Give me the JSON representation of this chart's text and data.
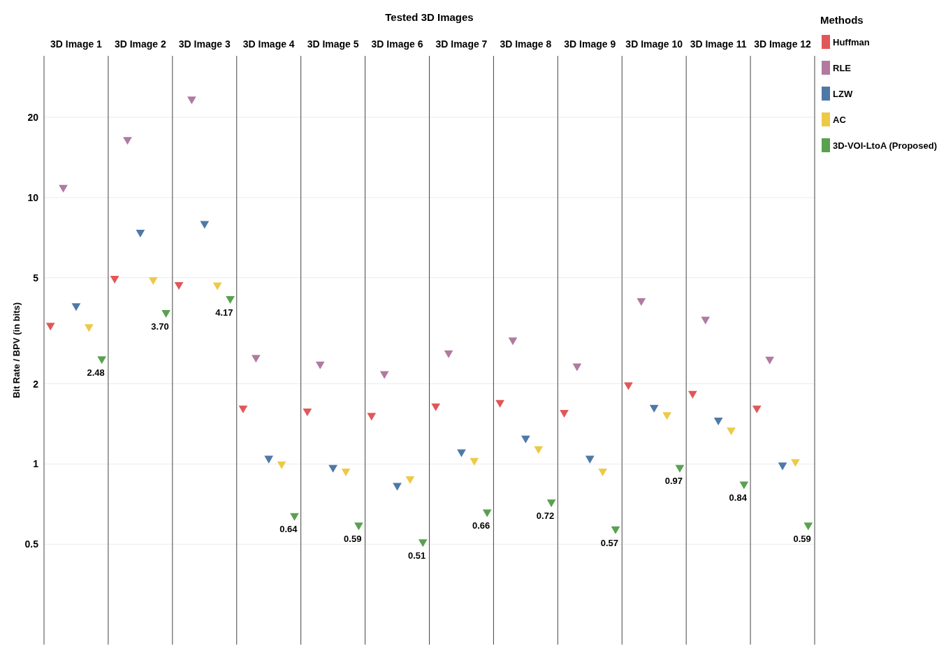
{
  "chart_data": {
    "type": "scatter",
    "xlabel": "Tested 3D Images",
    "ylabel": "Bit Rate / BPV (in bits)",
    "legend_title": "Methods",
    "legend": "right",
    "marker": "triangle",
    "log": "y",
    "grid": "y",
    "categories": [
      "3D Image 1",
      "3D Image 2",
      "3D Image 3",
      "3D Image 4",
      "3D Image 5",
      "3D Image 6",
      "3D Image 7",
      "3D Image 8",
      "3D Image 9",
      "3D Image 10",
      "3D Image 11",
      "3D Image 12"
    ],
    "ylim": [
      0.21,
      34
    ],
    "yticks": [
      0.5,
      1,
      2,
      5,
      10,
      20
    ],
    "series": [
      {
        "name": "Huffman",
        "color": "#e15759",
        "values": [
          3.31,
          4.97,
          4.71,
          1.62,
          1.58,
          1.52,
          1.65,
          1.7,
          1.56,
          1.98,
          1.84,
          1.62
        ]
      },
      {
        "name": "RLE",
        "color": "#b07aa1",
        "values": [
          10.9,
          16.5,
          23.4,
          2.51,
          2.37,
          2.18,
          2.61,
          2.92,
          2.33,
          4.1,
          3.49,
          2.47
        ]
      },
      {
        "name": "LZW",
        "color": "#4e79a7",
        "values": [
          3.92,
          7.4,
          7.98,
          1.05,
          0.97,
          0.83,
          1.11,
          1.25,
          1.05,
          1.63,
          1.46,
          0.99
        ]
      },
      {
        "name": "AC",
        "color": "#edc948",
        "values": [
          3.27,
          4.91,
          4.69,
          1.0,
          0.94,
          0.88,
          1.03,
          1.14,
          0.94,
          1.53,
          1.34,
          1.02
        ]
      },
      {
        "name": "3D-VOI-LtoA (Proposed)",
        "color": "#59a14f",
        "values": [
          2.48,
          3.7,
          4.17,
          0.64,
          0.59,
          0.51,
          0.66,
          0.72,
          0.57,
          0.97,
          0.84,
          0.59
        ],
        "value_labels": [
          "2.48",
          "3.70",
          "4.17",
          "0.64",
          "0.59",
          "0.51",
          "0.66",
          "0.72",
          "0.57",
          "0.97",
          "0.84",
          "0.59"
        ]
      }
    ]
  }
}
